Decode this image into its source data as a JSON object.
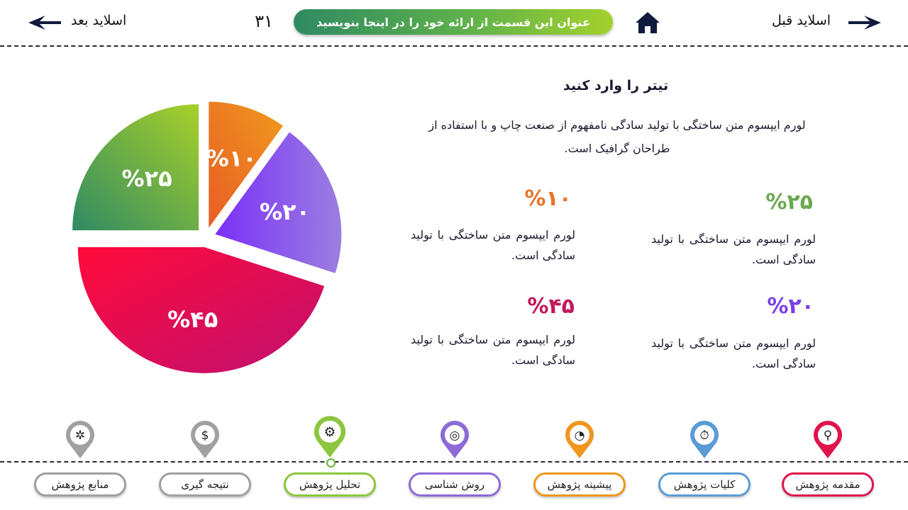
{
  "header": {
    "prev_label": "اسلاید قبل",
    "next_label": "اسلاید بعد",
    "slide_number": "۳۱",
    "title": "عنوان این قسمت از ارائه خود را در اینجا بنویسید"
  },
  "content": {
    "heading": "تیتر را وارد کنید",
    "intro": "لورم ایپسوم متن ساختگی با تولید سادگی نامفهوم از صنعت چاپ و با استفاده از طراحان گرافیک است.",
    "stats": [
      {
        "pct": "%۲۵",
        "text": "لورم ایپسوم متن ساختگی با تولید سادگی است.",
        "color": "#6aa84f"
      },
      {
        "pct": "%۱۰",
        "text": "لورم ایپسوم متن ساختگی با تولید سادگی است.",
        "color": "#e8742a"
      },
      {
        "pct": "%۲۰",
        "text": "لورم ایپسوم متن ساختگی با تولید سادگی است.",
        "color": "#7b3fe4"
      },
      {
        "pct": "%۴۵",
        "text": "لورم ایپسوم متن ساختگی با تولید سادگی است.",
        "color": "#c2185b"
      }
    ]
  },
  "chart_data": {
    "type": "pie",
    "title": "",
    "categories": [
      "%۱۰",
      "%۲۰",
      "%۴۵",
      "%۲۵"
    ],
    "values": [
      10,
      20,
      45,
      25
    ],
    "colors": [
      [
        "#f09a1c",
        "#e85d26"
      ],
      [
        "#7b2ff7",
        "#9b7fe0"
      ],
      [
        "#ff0a3a",
        "#c01070"
      ],
      [
        "#a8d02a",
        "#2f8a63"
      ]
    ]
  },
  "menu": [
    {
      "label": "مقدمه پژوهش",
      "color": "#e0144c",
      "icon": "search-person-icon"
    },
    {
      "label": "کلیات پژوهش",
      "color": "#5b9bd5",
      "icon": "stopwatch-icon"
    },
    {
      "label": "پیشینه پژوهش",
      "color": "#f0961e",
      "icon": "pie-chart-icon"
    },
    {
      "label": "روش شناسی",
      "color": "#8e6ad8",
      "icon": "target-icon"
    },
    {
      "label": "تحلیل پژوهش",
      "color": "#8cc63f",
      "icon": "gear-icon"
    },
    {
      "label": "نتیجه گیری",
      "color": "#a0a0a0",
      "icon": "lightbulb-dollar-icon"
    },
    {
      "label": "منابع پژوهش",
      "color": "#a0a0a0",
      "icon": "cog-hand-icon"
    }
  ]
}
